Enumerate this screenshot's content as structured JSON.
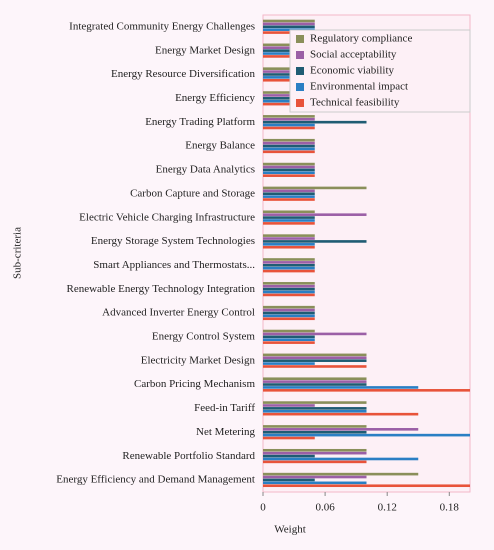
{
  "chart_data": {
    "type": "barh",
    "xlabel": "Weight",
    "ylabel": "Sub-criteria",
    "categories": [
      "Integrated Community Energy Challenges",
      "Energy Market Design",
      "Energy Resource Diversification",
      "Energy Efficiency",
      "Energy Trading Platform",
      "Energy Balance",
      "Energy Data Analytics",
      "Carbon Capture and Storage",
      "Electric Vehicle Charging Infrastructure",
      "Energy Storage System Technologies",
      "Smart Appliances and Thermostats...",
      "Renewable Energy Technology Integration",
      "Advanced Inverter Energy Control",
      "Energy Control System",
      "Electricity Market Design",
      "Carbon Pricing Mechanism",
      "Feed-in Tariff",
      "Net Metering",
      "Renewable Portfolio Standard",
      "Energy Efficiency and Demand Management"
    ],
    "series": [
      {
        "name": "Regulatory compliance",
        "color": "#8a8f5a",
        "values": [
          0.05,
          0.05,
          0.05,
          0.05,
          0.05,
          0.05,
          0.05,
          0.1,
          0.05,
          0.05,
          0.05,
          0.05,
          0.05,
          0.05,
          0.1,
          0.1,
          0.1,
          0.1,
          0.1,
          0.15
        ]
      },
      {
        "name": "Social acceptability",
        "color": "#9b5fa6",
        "values": [
          0.05,
          0.05,
          0.05,
          0.05,
          0.05,
          0.05,
          0.05,
          0.05,
          0.1,
          0.05,
          0.05,
          0.05,
          0.05,
          0.1,
          0.1,
          0.1,
          0.05,
          0.15,
          0.1,
          0.1
        ]
      },
      {
        "name": "Economic viability",
        "color": "#1f5c73",
        "values": [
          0.05,
          0.05,
          0.05,
          0.05,
          0.1,
          0.05,
          0.05,
          0.05,
          0.05,
          0.1,
          0.05,
          0.05,
          0.05,
          0.05,
          0.1,
          0.1,
          0.1,
          0.1,
          0.05,
          0.05
        ]
      },
      {
        "name": "Environmental impact",
        "color": "#2a7fc4",
        "values": [
          0.05,
          0.05,
          0.05,
          0.05,
          0.05,
          0.05,
          0.05,
          0.05,
          0.05,
          0.05,
          0.05,
          0.05,
          0.05,
          0.05,
          0.05,
          0.15,
          0.1,
          0.2,
          0.15,
          0.1
        ]
      },
      {
        "name": "Technical feasibility",
        "color": "#e8533a",
        "values": [
          0.05,
          0.05,
          0.05,
          0.05,
          0.05,
          0.05,
          0.05,
          0.05,
          0.05,
          0.05,
          0.05,
          0.05,
          0.05,
          0.05,
          0.1,
          0.2,
          0.15,
          0.05,
          0.1,
          0.2
        ]
      }
    ],
    "xlim": [
      0,
      0.2
    ],
    "xticks": [
      0,
      0.06,
      0.12,
      0.18
    ],
    "legend": "upper right"
  }
}
